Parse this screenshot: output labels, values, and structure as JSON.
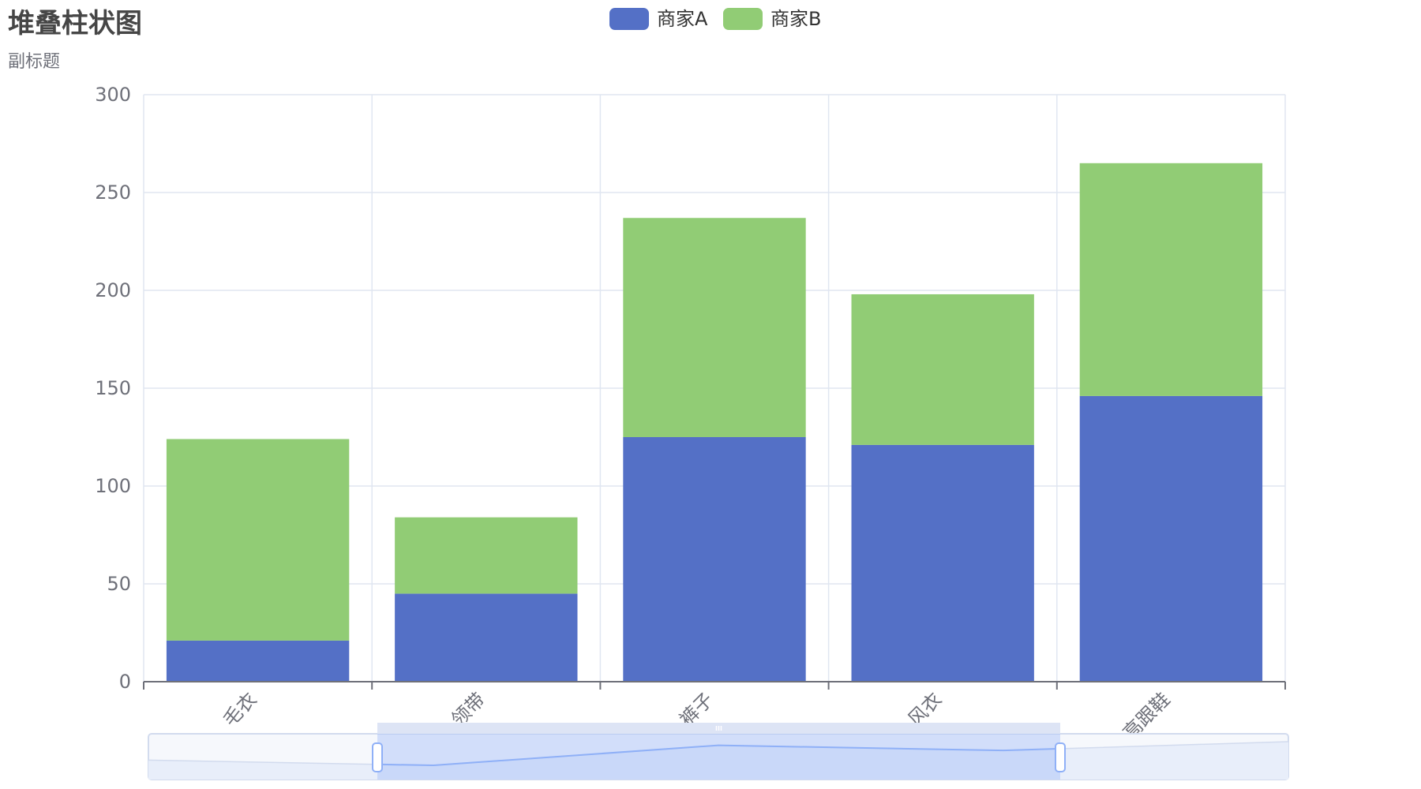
{
  "chart_data": {
    "type": "bar",
    "stacked": true,
    "title": "堆叠柱状图",
    "subtitle": "副标题",
    "categories": [
      "毛衣",
      "领带",
      "裤子",
      "风衣",
      "高跟鞋"
    ],
    "series": [
      {
        "name": "商家A",
        "color": "#5470c6",
        "values": [
          21,
          45,
          125,
          121,
          146
        ]
      },
      {
        "name": "商家B",
        "color": "#91cc75",
        "values": [
          103,
          39,
          112,
          77,
          119
        ]
      }
    ],
    "ylim": [
      0,
      300
    ],
    "yticks": [
      0,
      50,
      100,
      150,
      200,
      250,
      300
    ],
    "grid": true,
    "legend_position": "top-center",
    "x_tick_rotation": 45,
    "data_zoom": {
      "type": "slider",
      "start_index": 1,
      "end_index": 4
    }
  }
}
